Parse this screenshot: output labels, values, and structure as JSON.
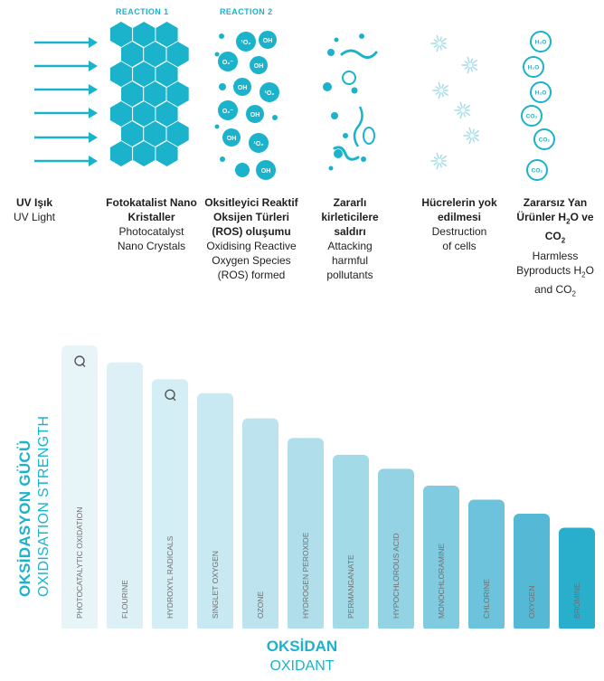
{
  "reactions": {
    "reaction1": "REACTION 1",
    "reaction2": "REACTION 2"
  },
  "illustration_text": {
    "oh": "OH",
    "o2": "¹O₂",
    "o2_minus": "O₂⁻",
    "h2o": "H₂O",
    "co2": "CO₂"
  },
  "stages": [
    {
      "tr": "UV Işık",
      "en": "UV Light"
    },
    {
      "tr": "Fotokatalist Nano Kristaller",
      "en": "Photocatalyst Nano Crystals"
    },
    {
      "tr": "Oksitleyici Reaktif Oksijen Türleri (ROS) oluşumu",
      "en": "Oxidising Reactive Oxygen Species (ROS) formed"
    },
    {
      "tr": "Zararlı kirleticilere saldırı",
      "en": "Attacking harmful pollutants"
    },
    {
      "tr": "Hücrelerin yok edilmesi",
      "en": "Destruction of cells"
    },
    {
      "tr_pre": "Zararsız Yan Ürünler H",
      "tr_sub": "2",
      "tr_mid": "O ve CO",
      "tr_sub2": "2",
      "en_pre": "Harmless Byproducts H",
      "en_sub": "2",
      "en_mid": "O and CO",
      "en_sub2": "2"
    }
  ],
  "colors": {
    "accent": "#1bb3cc",
    "hex": "#1bb3cc",
    "bar_palette": [
      "#e8f5f8",
      "#dcf0f5",
      "#d3eef4",
      "#c8e9f1",
      "#bde4ee",
      "#b0dfeb",
      "#a3dae8",
      "#93d3e4",
      "#80cbe0",
      "#6cc3db",
      "#55b9d5",
      "#29aecb"
    ]
  },
  "chart_data": {
    "type": "bar",
    "categories": [
      "PHOTOCATALYTIC OXIDATION",
      "FLOURINE",
      "HYDROXYL RADICALS",
      "SINGLET OXYGEN",
      "OZONE",
      "HYDROGEN PEROXIDE",
      "PERMANGANATE",
      "HYPOCHLOROUS ACID",
      "MONOCHLORAMINE",
      "CHLORINE",
      "OXYGEN",
      "BROMINE"
    ],
    "values": [
      100,
      94,
      88,
      83,
      74,
      67,
      61,
      56,
      50,
      45,
      40,
      35
    ],
    "marker_icon": "q-marker-icon",
    "marked_categories": [
      "PHOTOCATALYTIC OXIDATION",
      "HYDROXYL RADICALS"
    ],
    "ylabel_tr": "OKSİDASYON GÜCÜ",
    "ylabel_en": "OXIDISATION STRENGTH",
    "xlabel_tr": "OKSİDAN",
    "xlabel_en": "OXIDANT",
    "grid": false
  }
}
